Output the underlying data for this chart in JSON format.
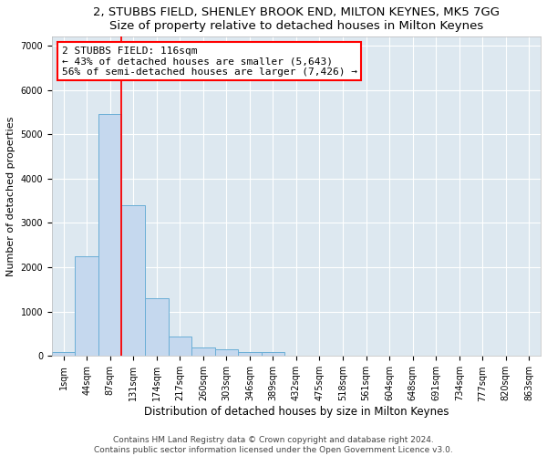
{
  "title": "2, STUBBS FIELD, SHENLEY BROOK END, MILTON KEYNES, MK5 7GG",
  "subtitle": "Size of property relative to detached houses in Milton Keynes",
  "xlabel": "Distribution of detached houses by size in Milton Keynes",
  "ylabel": "Number of detached properties",
  "bin_labels": [
    "1sqm",
    "44sqm",
    "87sqm",
    "131sqm",
    "174sqm",
    "217sqm",
    "260sqm",
    "303sqm",
    "346sqm",
    "389sqm",
    "432sqm",
    "475sqm",
    "518sqm",
    "561sqm",
    "604sqm",
    "648sqm",
    "691sqm",
    "734sqm",
    "777sqm",
    "820sqm",
    "863sqm"
  ],
  "bar_heights": [
    90,
    2250,
    5450,
    3400,
    1300,
    430,
    200,
    150,
    90,
    90,
    0,
    0,
    0,
    0,
    0,
    0,
    0,
    0,
    0,
    0,
    0
  ],
  "bar_color": "#c5d8ee",
  "bar_edgecolor": "#6aaed6",
  "figure_facecolor": "#ffffff",
  "axes_facecolor": "#dde8f0",
  "grid_color": "#ffffff",
  "annotation_line1": "2 STUBBS FIELD: 116sqm",
  "annotation_line2": "← 43% of detached houses are smaller (5,643)",
  "annotation_line3": "56% of semi-detached houses are larger (7,426) →",
  "red_line_x": 2.5,
  "ylim_max": 7200,
  "yticks": [
    0,
    1000,
    2000,
    3000,
    4000,
    5000,
    6000,
    7000
  ],
  "footer": "Contains HM Land Registry data © Crown copyright and database right 2024.\nContains public sector information licensed under the Open Government Licence v3.0.",
  "title_fontsize": 9.5,
  "subtitle_fontsize": 8.5,
  "xlabel_fontsize": 8.5,
  "ylabel_fontsize": 8,
  "tick_fontsize": 7,
  "annot_fontsize": 8
}
